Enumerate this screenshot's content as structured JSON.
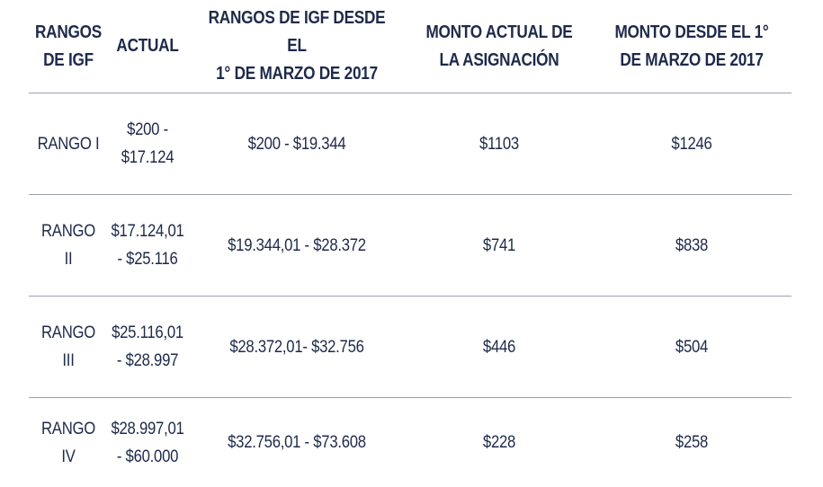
{
  "header": {
    "col1": [
      "RANGOS",
      "DE IGF"
    ],
    "col2": [
      "ACTUAL"
    ],
    "col3": [
      "RANGOS DE IGF DESDE EL",
      "1° DE MARZO DE 2017"
    ],
    "col4": [
      "MONTO ACTUAL DE",
      "LA ASIGNACIÓN"
    ],
    "col5": [
      "MONTO DESDE EL 1°",
      "DE MARZO DE 2017"
    ]
  },
  "rows": [
    {
      "rango": [
        "RANGO I"
      ],
      "actual": [
        "$200 -",
        "$17.124"
      ],
      "rango_2017": "$200 - $19.344",
      "monto_actual": "$1103",
      "monto_2017": "$1246"
    },
    {
      "rango": [
        "RANGO",
        "II"
      ],
      "actual": [
        "$17.124,01",
        "- $25.116"
      ],
      "rango_2017": "$19.344,01 - $28.372",
      "monto_actual": "$741",
      "monto_2017": "$838"
    },
    {
      "rango": [
        "RANGO",
        "III"
      ],
      "actual": [
        "$25.116,01",
        "- $28.997"
      ],
      "rango_2017": "$28.372,01- $32.756",
      "monto_actual": "$446",
      "monto_2017": "$504"
    },
    {
      "rango": [
        "RANGO",
        "IV"
      ],
      "actual": [
        "$28.997,01",
        "- $60.000"
      ],
      "rango_2017": "$32.756,01 - $73.608",
      "monto_actual": "$228",
      "monto_2017": "$258"
    }
  ]
}
